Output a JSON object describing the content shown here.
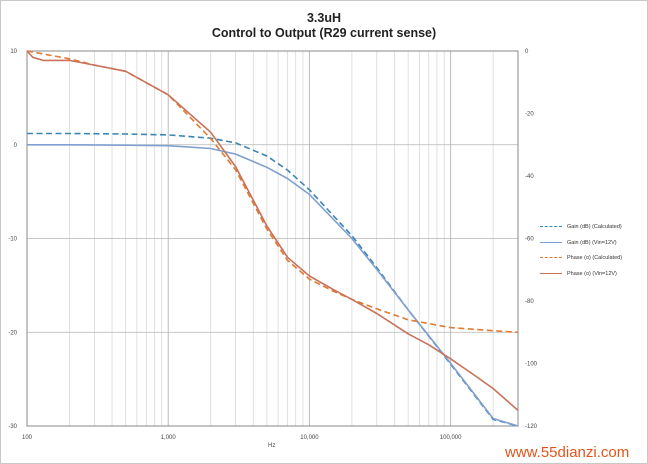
{
  "chart_data": {
    "type": "line",
    "title": "3.3uH",
    "subtitle": "Control to Output (R29 current sense)",
    "xlabel": "Hz",
    "x_scale": "log",
    "xlim": [
      100,
      300000
    ],
    "ylim_left": [
      -30,
      10
    ],
    "ylim_right": [
      -120,
      0
    ],
    "x_ticks": [
      100,
      1000,
      10000,
      100000
    ],
    "x_tick_labels": [
      "100",
      "1,000",
      "10,000",
      "100,000"
    ],
    "y_left_ticks": [
      10,
      0,
      -10,
      -20,
      -30
    ],
    "y_left_tick_labels": [
      "10",
      "0",
      "-10",
      "-20",
      "-30"
    ],
    "y_right_ticks": [
      0,
      -20,
      -40,
      -60,
      -80,
      -100,
      -120
    ],
    "y_right_tick_labels": [
      "0",
      "-20",
      "-40",
      "-60",
      "-80",
      "-100",
      "-120"
    ],
    "grid": true,
    "legend_position": "right",
    "series": [
      {
        "name": "Gain (dB) (Calculated)",
        "axis": "left",
        "color": "#3a86b4",
        "dash": true,
        "x": [
          100,
          200,
          500,
          1000,
          2000,
          3000,
          5000,
          7000,
          10000,
          20000,
          30000,
          50000,
          100000,
          200000,
          300000
        ],
        "y": [
          1.2,
          1.2,
          1.15,
          1.05,
          0.7,
          0.2,
          -1.2,
          -2.7,
          -4.8,
          -9.7,
          -13.1,
          -17.6,
          -23.4,
          -29.3,
          -32.5
        ]
      },
      {
        "name": "Gain (dB) (Vin=12V)",
        "axis": "left",
        "color": "#7f9fcf",
        "dash": false,
        "x": [
          100,
          200,
          500,
          1000,
          2000,
          3000,
          5000,
          7000,
          10000,
          20000,
          30000,
          50000,
          100000,
          200000,
          300000
        ],
        "y": [
          0.0,
          0.0,
          -0.05,
          -0.1,
          -0.4,
          -1.0,
          -2.4,
          -3.6,
          -5.3,
          -10.0,
          -13.3,
          -17.6,
          -23.3,
          -29.2,
          -32.5
        ]
      },
      {
        "name": "Phase (o) (Calculated)",
        "axis": "right",
        "color": "#e07b32",
        "dash": true,
        "x": [
          100,
          200,
          300,
          500,
          1000,
          2000,
          3000,
          5000,
          7000,
          10000,
          15000,
          20000,
          30000,
          50000,
          100000,
          200000,
          300000
        ],
        "y": [
          0,
          -2.5,
          -4.5,
          -6.5,
          -14,
          -28,
          -38,
          -57,
          -67,
          -73,
          -77,
          -79.5,
          -82.5,
          -86,
          -88.5,
          -89.5,
          -90
        ]
      },
      {
        "name": "Phase (o) (Vin=12V)",
        "axis": "right",
        "color": "#c8725a",
        "dash": false,
        "x": [
          100,
          110,
          130,
          200,
          300,
          500,
          1000,
          2000,
          3000,
          5000,
          7000,
          10000,
          15000,
          20000,
          30000,
          50000,
          70000,
          100000,
          150000,
          200000,
          300000
        ],
        "y": [
          0,
          -2,
          -3,
          -3,
          -4.5,
          -6.5,
          -14,
          -26,
          -37,
          -56,
          -66,
          -72,
          -76.5,
          -79.5,
          -84,
          -90.5,
          -94,
          -98.5,
          -104,
          -108,
          -115
        ]
      }
    ]
  },
  "watermark_text": "www.55dianzi.com"
}
